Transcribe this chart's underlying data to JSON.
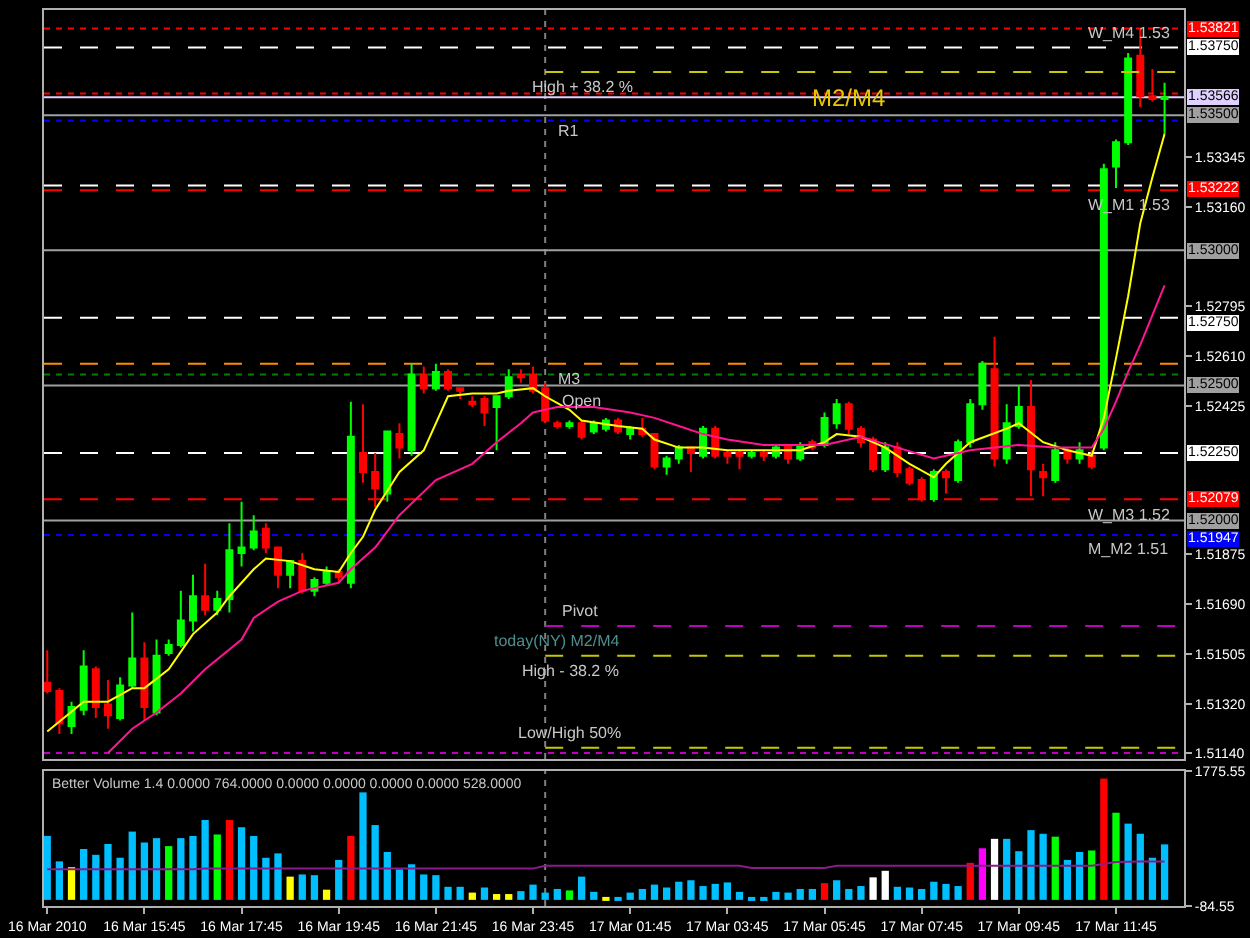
{
  "chart_data": [
    {
      "type": "candlestick",
      "x": [
        "2010-03-16T13:45",
        "2010-03-16T14:00",
        "2010-03-16T14:15",
        "2010-03-16T14:30",
        "2010-03-16T14:45",
        "2010-03-16T15:00",
        "2010-03-16T15:15",
        "2010-03-16T15:30",
        "2010-03-16T15:45",
        "2010-03-16T16:00",
        "2010-03-16T16:15",
        "2010-03-16T16:30",
        "2010-03-16T16:45",
        "2010-03-16T17:00",
        "2010-03-16T17:15",
        "2010-03-16T17:30",
        "2010-03-16T17:45",
        "2010-03-16T18:00",
        "2010-03-16T18:15",
        "2010-03-16T18:30",
        "2010-03-16T18:45",
        "2010-03-16T19:00",
        "2010-03-16T19:15",
        "2010-03-16T19:30",
        "2010-03-16T19:45",
        "2010-03-16T20:00",
        "2010-03-16T20:15",
        "2010-03-16T20:30",
        "2010-03-16T20:45",
        "2010-03-16T21:00",
        "2010-03-16T21:15",
        "2010-03-16T21:30",
        "2010-03-16T21:45",
        "2010-03-16T22:00",
        "2010-03-16T22:15",
        "2010-03-16T22:30",
        "2010-03-16T22:45",
        "2010-03-16T23:00",
        "2010-03-16T23:15",
        "2010-03-16T23:30",
        "2010-03-16T23:45",
        "2010-03-17T00:00",
        "2010-03-17T00:15",
        "2010-03-17T00:30",
        "2010-03-17T00:45",
        "2010-03-17T01:00",
        "2010-03-17T01:15",
        "2010-03-17T01:30",
        "2010-03-17T01:45",
        "2010-03-17T02:00",
        "2010-03-17T02:15",
        "2010-03-17T02:30",
        "2010-03-17T02:45",
        "2010-03-17T03:00",
        "2010-03-17T03:15",
        "2010-03-17T03:30",
        "2010-03-17T03:45",
        "2010-03-17T04:00",
        "2010-03-17T04:15",
        "2010-03-17T04:30",
        "2010-03-17T04:45",
        "2010-03-17T05:00",
        "2010-03-17T05:15",
        "2010-03-17T05:30",
        "2010-03-17T05:45",
        "2010-03-17T06:00",
        "2010-03-17T06:15",
        "2010-03-17T06:30",
        "2010-03-17T06:45",
        "2010-03-17T07:00",
        "2010-03-17T07:15",
        "2010-03-17T07:30",
        "2010-03-17T07:45",
        "2010-03-17T08:00",
        "2010-03-17T08:15",
        "2010-03-17T08:30",
        "2010-03-17T08:45",
        "2010-03-17T09:00",
        "2010-03-17T09:15",
        "2010-03-17T09:30",
        "2010-03-17T09:45",
        "2010-03-17T10:00",
        "2010-03-17T10:15",
        "2010-03-17T10:30",
        "2010-03-17T10:45",
        "2010-03-17T11:00",
        "2010-03-17T11:15",
        "2010-03-17T11:30",
        "2010-03-17T11:45",
        "2010-03-17T12:00",
        "2010-03-17T12:15",
        "2010-03-17T12:30",
        "2010-03-17T12:45"
      ],
      "ohlc": [
        [
          1.514,
          1.5152,
          1.5136,
          1.5137
        ],
        [
          1.5137,
          1.5138,
          1.5121,
          1.5125
        ],
        [
          1.5124,
          1.5133,
          1.5121,
          1.5131
        ],
        [
          1.513,
          1.5152,
          1.5128,
          1.5146
        ],
        [
          1.5145,
          1.5146,
          1.5127,
          1.5131
        ],
        [
          1.5132,
          1.5141,
          1.5123,
          1.5128
        ],
        [
          1.5127,
          1.5142,
          1.5126,
          1.5139
        ],
        [
          1.5139,
          1.5166,
          1.5138,
          1.5149
        ],
        [
          1.5149,
          1.5155,
          1.5126,
          1.5131
        ],
        [
          1.5129,
          1.5156,
          1.5128,
          1.515
        ],
        [
          1.5151,
          1.5156,
          1.515,
          1.5154
        ],
        [
          1.5154,
          1.5174,
          1.5153,
          1.5163
        ],
        [
          1.5163,
          1.518,
          1.5159,
          1.5172
        ],
        [
          1.5172,
          1.5184,
          1.5165,
          1.5167
        ],
        [
          1.5167,
          1.5174,
          1.5165,
          1.5171
        ],
        [
          1.5171,
          1.5199,
          1.5166,
          1.5189
        ],
        [
          1.5188,
          1.5207,
          1.5183,
          1.519
        ],
        [
          1.519,
          1.5202,
          1.5189,
          1.5196
        ],
        [
          1.5197,
          1.5199,
          1.5188,
          1.519
        ],
        [
          1.519,
          1.519,
          1.5175,
          1.518
        ],
        [
          1.518,
          1.5185,
          1.5175,
          1.5185
        ],
        [
          1.5185,
          1.5188,
          1.5173,
          1.5174
        ],
        [
          1.5174,
          1.5179,
          1.5172,
          1.5178
        ],
        [
          1.5177,
          1.5183,
          1.5176,
          1.5181
        ],
        [
          1.5181,
          1.5182,
          1.5177,
          1.5179
        ],
        [
          1.5177,
          1.5244,
          1.5175,
          1.5231
        ],
        [
          1.5225,
          1.5243,
          1.5214,
          1.5218
        ],
        [
          1.5218,
          1.5225,
          1.5205,
          1.5212
        ],
        [
          1.521,
          1.5233,
          1.5207,
          1.5233
        ],
        [
          1.5232,
          1.5236,
          1.5223,
          1.5227
        ],
        [
          1.5226,
          1.5258,
          1.5224,
          1.5254
        ],
        [
          1.5254,
          1.5257,
          1.5247,
          1.5249
        ],
        [
          1.5249,
          1.5258,
          1.5248,
          1.5255
        ],
        [
          1.5255,
          1.5256,
          1.5248,
          1.5249
        ],
        [
          1.5249,
          1.5249,
          1.5245,
          1.5248
        ],
        [
          1.5244,
          1.5246,
          1.5242,
          1.5243
        ],
        [
          1.5245,
          1.5246,
          1.5235,
          1.524
        ],
        [
          1.5242,
          1.5246,
          1.5226,
          1.5246
        ],
        [
          1.5246,
          1.5256,
          1.5245,
          1.5253
        ],
        [
          1.5254,
          1.5256,
          1.5251,
          1.5253
        ],
        [
          1.5254,
          1.5257,
          1.5247,
          1.5248
        ],
        [
          1.5249,
          1.5251,
          1.5236,
          1.5237
        ],
        [
          1.5236,
          1.5237,
          1.5234,
          1.5235
        ],
        [
          1.5235,
          1.5237,
          1.5234,
          1.5236
        ],
        [
          1.5236,
          1.5237,
          1.523,
          1.5231
        ],
        [
          1.5233,
          1.5237,
          1.5232,
          1.5236
        ],
        [
          1.5234,
          1.5238,
          1.5233,
          1.5237
        ],
        [
          1.5237,
          1.5238,
          1.5232,
          1.5233
        ],
        [
          1.5232,
          1.5235,
          1.523,
          1.5234
        ],
        [
          1.5234,
          1.5238,
          1.5231,
          1.5232
        ],
        [
          1.5232,
          1.5232,
          1.5219,
          1.522
        ],
        [
          1.522,
          1.5224,
          1.5217,
          1.5223
        ],
        [
          1.5223,
          1.5228,
          1.5221,
          1.5227
        ],
        [
          1.5227,
          1.5227,
          1.5218,
          1.5225
        ],
        [
          1.5224,
          1.5235,
          1.5223,
          1.5234
        ],
        [
          1.5234,
          1.5235,
          1.5223,
          1.5224
        ],
        [
          1.5225,
          1.5226,
          1.5221,
          1.5224
        ],
        [
          1.5225,
          1.5226,
          1.5219,
          1.5224
        ],
        [
          1.5224,
          1.5226,
          1.5223,
          1.5225
        ],
        [
          1.5225,
          1.5226,
          1.5222,
          1.5224
        ],
        [
          1.5224,
          1.5228,
          1.5223,
          1.5227
        ],
        [
          1.5228,
          1.5228,
          1.5221,
          1.5223
        ],
        [
          1.5223,
          1.5229,
          1.5222,
          1.5228
        ],
        [
          1.5229,
          1.523,
          1.5226,
          1.5227
        ],
        [
          1.5228,
          1.524,
          1.5227,
          1.5238
        ],
        [
          1.5236,
          1.5245,
          1.5234,
          1.5243
        ],
        [
          1.5243,
          1.5244,
          1.5232,
          1.5234
        ],
        [
          1.5234,
          1.5235,
          1.5227,
          1.5229
        ],
        [
          1.523,
          1.5231,
          1.5218,
          1.5219
        ],
        [
          1.5219,
          1.5229,
          1.5218,
          1.5227
        ],
        [
          1.5227,
          1.5229,
          1.5216,
          1.5218
        ],
        [
          1.5219,
          1.522,
          1.5213,
          1.5214
        ],
        [
          1.5215,
          1.5216,
          1.5207,
          1.5208
        ],
        [
          1.5208,
          1.5219,
          1.5207,
          1.5218
        ],
        [
          1.5218,
          1.5219,
          1.521,
          1.5216
        ],
        [
          1.5215,
          1.523,
          1.5214,
          1.5229
        ],
        [
          1.5229,
          1.5245,
          1.5227,
          1.5243
        ],
        [
          1.5243,
          1.5259,
          1.5241,
          1.5258
        ],
        [
          1.5256,
          1.5268,
          1.522,
          1.5223
        ],
        [
          1.5223,
          1.5243,
          1.5221,
          1.5236
        ],
        [
          1.5235,
          1.525,
          1.5234,
          1.5242
        ],
        [
          1.5242,
          1.5252,
          1.5209,
          1.5219
        ],
        [
          1.5218,
          1.5221,
          1.5209,
          1.5216
        ],
        [
          1.5215,
          1.5229,
          1.5214,
          1.5226
        ],
        [
          1.5226,
          1.5227,
          1.5221,
          1.5223
        ],
        [
          1.5223,
          1.5229,
          1.5221,
          1.5226
        ],
        [
          1.5224,
          1.5226,
          1.5219,
          1.522
        ],
        [
          1.5227,
          1.5332,
          1.5226,
          1.533
        ],
        [
          1.5331,
          1.5341,
          1.5323,
          1.534
        ],
        [
          1.534,
          1.5373,
          1.5339,
          1.5371
        ],
        [
          1.5372,
          1.53821,
          1.5353,
          1.5357
        ],
        [
          1.5357,
          1.5367,
          1.5355,
          1.5356
        ],
        [
          1.5356,
          1.5362,
          1.5343,
          1.53566
        ]
      ],
      "series": [
        {
          "type": "line",
          "color": "#c8c800",
          "line_style": "dashed",
          "x": [
            "2010-03-17T00:00",
            "2010-03-17T13:09"
          ],
          "values": [
            1.5366,
            1.5366
          ]
        },
        {
          "type": "line",
          "color": "#c000c0",
          "line_style": "dashed",
          "x": [
            "2010-03-17T00:00",
            "2010-03-17T13:09"
          ],
          "values": [
            1.5161,
            1.5161
          ]
        },
        {
          "type": "line",
          "color": "#c8c800",
          "line_style": "dashed",
          "x": [
            "2010-03-17T00:00",
            "2010-03-17T13:09"
          ],
          "values": [
            1.515,
            1.515
          ]
        },
        {
          "type": "line",
          "color": "#c8c800",
          "line_style": "dashed",
          "x": [
            "2010-03-17T00:00",
            "2010-03-17T13:09"
          ],
          "values": [
            1.5116,
            1.5116
          ]
        },
        {
          "type": "line",
          "color": "#ffff00",
          "x": [
            "2010-03-16T13:45",
            "2010-03-16T14:30",
            "2010-03-16T15:00",
            "2010-03-16T15:30",
            "2010-03-16T15:45",
            "2010-03-16T16:15",
            "2010-03-16T16:45",
            "2010-03-16T17:15",
            "2010-03-16T17:30",
            "2010-03-16T18:00",
            "2010-03-16T18:15",
            "2010-03-16T18:45",
            "2010-03-16T19:15",
            "2010-03-16T19:45",
            "2010-03-16T20:00",
            "2010-03-16T20:15",
            "2010-03-16T20:30",
            "2010-03-16T21:00",
            "2010-03-16T21:30",
            "2010-03-16T22:00",
            "2010-03-16T22:30",
            "2010-03-16T23:00",
            "2010-03-16T23:15",
            "2010-03-16T23:45",
            "2010-03-17T00:00",
            "2010-03-17T00:30",
            "2010-03-17T00:45",
            "2010-03-17T01:30",
            "2010-03-17T02:00",
            "2010-03-17T02:15",
            "2010-03-17T02:45",
            "2010-03-17T03:15",
            "2010-03-17T03:45",
            "2010-03-17T04:30",
            "2010-03-17T05:15",
            "2010-03-17T05:45",
            "2010-03-17T06:00",
            "2010-03-17T06:30",
            "2010-03-17T07:00",
            "2010-03-17T07:30",
            "2010-03-17T08:00",
            "2010-03-17T08:15",
            "2010-03-17T08:45",
            "2010-03-17T09:30",
            "2010-03-17T09:45",
            "2010-03-17T10:15",
            "2010-03-17T10:45",
            "2010-03-17T11:15",
            "2010-03-17T11:30",
            "2010-03-17T11:45",
            "2010-03-17T12:00",
            "2010-03-17T12:15",
            "2010-03-17T12:30",
            "2010-03-17T12:45"
          ],
          "values": [
            1.5122,
            1.5133,
            1.5133,
            1.5138,
            1.5138,
            1.5145,
            1.5158,
            1.5166,
            1.5172,
            1.5182,
            1.5186,
            1.5185,
            1.5182,
            1.5181,
            1.5188,
            1.5194,
            1.5204,
            1.5218,
            1.5226,
            1.5246,
            1.5247,
            1.5247,
            1.5248,
            1.5249,
            1.5246,
            1.5241,
            1.5237,
            1.5235,
            1.5234,
            1.523,
            1.5227,
            1.5227,
            1.5226,
            1.5226,
            1.5226,
            1.5229,
            1.5232,
            1.5231,
            1.5227,
            1.5221,
            1.5216,
            1.5221,
            1.5229,
            1.5234,
            1.5236,
            1.5229,
            1.5226,
            1.5224,
            1.5238,
            1.526,
            1.5283,
            1.531,
            1.5327,
            1.5343
          ]
        },
        {
          "type": "line",
          "color": "#ff1493",
          "x": [
            "2010-03-16T15:00",
            "2010-03-16T15:30",
            "2010-03-16T16:00",
            "2010-03-16T16:30",
            "2010-03-16T17:00",
            "2010-03-16T17:45",
            "2010-03-16T18:00",
            "2010-03-16T18:30",
            "2010-03-16T19:00",
            "2010-03-16T19:45",
            "2010-03-16T20:00",
            "2010-03-16T20:30",
            "2010-03-16T21:00",
            "2010-03-16T21:45",
            "2010-03-16T22:30",
            "2010-03-16T23:00",
            "2010-03-16T23:30",
            "2010-03-16T23:45",
            "2010-03-17T00:15",
            "2010-03-17T01:00",
            "2010-03-17T01:45",
            "2010-03-17T02:15",
            "2010-03-17T02:45",
            "2010-03-17T03:15",
            "2010-03-17T03:45",
            "2010-03-17T04:30",
            "2010-03-17T05:15",
            "2010-03-17T05:45",
            "2010-03-17T06:30",
            "2010-03-17T07:15",
            "2010-03-17T08:00",
            "2010-03-17T08:45",
            "2010-03-17T09:45",
            "2010-03-17T10:30",
            "2010-03-17T11:15",
            "2010-03-17T11:30",
            "2010-03-17T11:45",
            "2010-03-17T12:00",
            "2010-03-17T12:15",
            "2010-03-17T12:30",
            "2010-03-17T12:45"
          ],
          "values": [
            1.5114,
            1.5123,
            1.5129,
            1.5136,
            1.5145,
            1.5156,
            1.5164,
            1.517,
            1.5174,
            1.5177,
            1.5182,
            1.519,
            1.5202,
            1.5215,
            1.5221,
            1.5229,
            1.5236,
            1.524,
            1.5242,
            1.5242,
            1.524,
            1.5238,
            1.5235,
            1.5232,
            1.523,
            1.5228,
            1.5228,
            1.5228,
            1.5231,
            1.5227,
            1.5223,
            1.5226,
            1.5228,
            1.5227,
            1.5227,
            1.5234,
            1.5244,
            1.5255,
            1.5265,
            1.5276,
            1.5287
          ]
        }
      ],
      "xlim": [
        "2010-03-16T13:41",
        "2010-03-17T13:09"
      ],
      "ylim": [
        1.51118,
        1.53889
      ],
      "yticks": [
        {
          "value": 1.5114,
          "label": "1.51140"
        },
        {
          "value": 1.5132,
          "label": "1.51320"
        },
        1.51505,
        {
          "value": 1.5169,
          "label": "1.51690"
        },
        1.51875,
        1.52425,
        {
          "value": 1.5261,
          "label": "1.52610"
        },
        1.52795,
        {
          "value": 1.5316,
          "label": "1.53160"
        },
        1.53345
      ],
      "tick_labels": "y",
      "ref_lines": [
        {
          "axis": "x",
          "value": "2010-03-17T00:00",
          "color": "#808080",
          "line_style": "dotted"
        },
        {
          "axis": "y",
          "value": 1.53821,
          "color": "#ff0000",
          "line_style": "dotted",
          "label": "1.53821"
        },
        {
          "axis": "y",
          "value": 1.5375,
          "color": "#ffffff",
          "line_style": "dashed",
          "label": "1.53750"
        },
        {
          "axis": "y",
          "value": 1.5358,
          "color": "#ff0000",
          "line_style": "dotted"
        },
        {
          "axis": "y",
          "value": 1.53566,
          "color": "#e0d0ff",
          "line_style": "solid",
          "label": "1.53566"
        },
        {
          "axis": "y",
          "value": 1.535,
          "color": "#a0a0a0",
          "line_style": "solid",
          "label": "1.53500"
        },
        {
          "axis": "y",
          "value": 1.5348,
          "color": "#0000ff",
          "line_style": "dotted"
        },
        {
          "axis": "y",
          "value": 1.5324,
          "color": "#ffffff",
          "line_style": "dashed"
        },
        {
          "axis": "y",
          "value": 1.53222,
          "color": "#ff0000",
          "line_style": "dashed",
          "label": "1.53222"
        },
        {
          "axis": "y",
          "value": 1.53,
          "color": "#a0a0a0",
          "line_style": "solid",
          "label": "1.53000"
        },
        {
          "axis": "y",
          "value": 1.5275,
          "color": "#ffffff",
          "line_style": "dashed",
          "label": "1.52750"
        },
        {
          "axis": "y",
          "value": 1.5258,
          "color": "#ff8c00",
          "line_style": "dashed"
        },
        {
          "axis": "y",
          "value": 1.5254,
          "color": "#008000",
          "line_style": "dotted"
        },
        {
          "axis": "y",
          "value": 1.525,
          "color": "#a0a0a0",
          "line_style": "solid",
          "label": "1.52500"
        },
        {
          "axis": "y",
          "value": 1.5225,
          "color": "#ffffff",
          "line_style": "dashed",
          "label": "1.52250"
        },
        {
          "axis": "y",
          "value": 1.52079,
          "color": "#ff0000",
          "line_style": "dashed",
          "label": "1.52079"
        },
        {
          "axis": "y",
          "value": 1.52,
          "color": "#a0a0a0",
          "line_style": "solid",
          "label": "1.52000"
        },
        {
          "axis": "y",
          "value": 1.51947,
          "color": "#0000ff",
          "line_style": "dotted",
          "label": "1.51947"
        },
        {
          "axis": "y",
          "value": 1.5114,
          "color": "#c000c0",
          "line_style": "dotted"
        }
      ],
      "annotations": [
        {
          "text": "W_M4 1.53",
          "x": "2010-03-17T12:00",
          "y": 1.5375
        },
        {
          "text": "High + 38.2 %",
          "x": "2010-03-17T00:45",
          "y": 1.5366
        },
        {
          "text": "M2/M4",
          "x": "2010-03-17T06:15",
          "y": 1.53566
        },
        {
          "text": "R1",
          "x": "2010-03-17T00:30",
          "y": 1.535
        },
        {
          "text": "W_M1 1.53",
          "x": "2010-03-17T12:00",
          "y": 1.53222
        },
        {
          "text": "M3",
          "x": "2010-03-17T00:30",
          "y": 1.5258
        },
        {
          "text": "Open",
          "x": "2010-03-17T00:45",
          "y": 1.525
        },
        {
          "text": "W_M3 1.52",
          "x": "2010-03-17T12:00",
          "y": 1.52079
        },
        {
          "text": "M_M2 1.51",
          "x": "2010-03-17T12:00",
          "y": 1.51947
        },
        {
          "text": "Pivot",
          "x": "2010-03-17T00:45",
          "y": 1.5161
        },
        {
          "text": "today(NY) M2/M4",
          "x": "2010-03-17T00:15",
          "y": 1.5161
        },
        {
          "text": "High - 38.2 %",
          "x": "2010-03-17T00:30",
          "y": 1.515
        },
        {
          "text": "Low/High 50%",
          "x": "2010-03-17T00:30",
          "y": 1.5116
        }
      ]
    },
    {
      "type": "bar",
      "title": "Better Volume 1.4 0.0000 764.0000 0.0000 0.0000 0.0000 0.0000 528.0000",
      "x": [
        "2010-03-16T13:45",
        "2010-03-16T14:00",
        "2010-03-16T14:15",
        "2010-03-16T14:30",
        "2010-03-16T14:45",
        "2010-03-16T15:00",
        "2010-03-16T15:15",
        "2010-03-16T15:30",
        "2010-03-16T15:45",
        "2010-03-16T16:00",
        "2010-03-16T16:15",
        "2010-03-16T16:30",
        "2010-03-16T16:45",
        "2010-03-16T17:00",
        "2010-03-16T17:15",
        "2010-03-16T17:30",
        "2010-03-16T17:45",
        "2010-03-16T18:00",
        "2010-03-16T18:15",
        "2010-03-16T18:30",
        "2010-03-16T18:45",
        "2010-03-16T19:00",
        "2010-03-16T19:15",
        "2010-03-16T19:30",
        "2010-03-16T19:45",
        "2010-03-16T20:00",
        "2010-03-16T20:15",
        "2010-03-16T20:30",
        "2010-03-16T20:45",
        "2010-03-16T21:00",
        "2010-03-16T21:15",
        "2010-03-16T21:30",
        "2010-03-16T21:45",
        "2010-03-16T22:00",
        "2010-03-16T22:15",
        "2010-03-16T22:30",
        "2010-03-16T22:45",
        "2010-03-16T23:00",
        "2010-03-16T23:15",
        "2010-03-16T23:30",
        "2010-03-16T23:45",
        "2010-03-17T00:00",
        "2010-03-17T00:15",
        "2010-03-17T00:30",
        "2010-03-17T00:45",
        "2010-03-17T01:00",
        "2010-03-17T01:15",
        "2010-03-17T01:30",
        "2010-03-17T01:45",
        "2010-03-17T02:00",
        "2010-03-17T02:15",
        "2010-03-17T02:30",
        "2010-03-17T02:45",
        "2010-03-17T03:00",
        "2010-03-17T03:15",
        "2010-03-17T03:30",
        "2010-03-17T03:45",
        "2010-03-17T04:00",
        "2010-03-17T04:15",
        "2010-03-17T04:30",
        "2010-03-17T04:45",
        "2010-03-17T05:00",
        "2010-03-17T05:15",
        "2010-03-17T05:30",
        "2010-03-17T05:45",
        "2010-03-17T06:00",
        "2010-03-17T06:15",
        "2010-03-17T06:30",
        "2010-03-17T06:45",
        "2010-03-17T07:00",
        "2010-03-17T07:15",
        "2010-03-17T07:30",
        "2010-03-17T07:45",
        "2010-03-17T08:00",
        "2010-03-17T08:15",
        "2010-03-17T08:30",
        "2010-03-17T08:45",
        "2010-03-17T09:00",
        "2010-03-17T09:15",
        "2010-03-17T09:30",
        "2010-03-17T09:45",
        "2010-03-17T10:00",
        "2010-03-17T10:15",
        "2010-03-17T10:30",
        "2010-03-17T10:45",
        "2010-03-17T11:00",
        "2010-03-17T11:15",
        "2010-03-17T11:30",
        "2010-03-17T11:45",
        "2010-03-17T12:00",
        "2010-03-17T12:15",
        "2010-03-17T12:30",
        "2010-03-17T12:45"
      ],
      "series": [
        {
          "type": "bar",
          "values": [
            880,
            530,
            450,
            700,
            620,
            770,
            580,
            940,
            790,
            850,
            740,
            850,
            880,
            1100,
            900,
            1100,
            1000,
            880,
            580,
            640,
            320,
            350,
            340,
            140,
            550,
            880,
            1480,
            1030,
            660,
            420,
            490,
            350,
            340,
            180,
            180,
            100,
            170,
            80,
            80,
            120,
            210,
            100,
            150,
            130,
            320,
            110,
            40,
            40,
            100,
            150,
            210,
            170,
            250,
            270,
            190,
            220,
            240,
            110,
            40,
            40,
            110,
            100,
            150,
            150,
            230,
            270,
            150,
            190,
            310,
            400,
            180,
            170,
            150,
            250,
            220,
            190,
            510,
            710,
            840,
            840,
            670,
            960,
            910,
            870,
            550,
            660,
            680,
            1670,
            1200,
            1050,
            910,
            580,
            764
          ],
          "colors": [
            "#00bfff",
            "#00bfff",
            "#ffff00",
            "#00bfff",
            "#00bfff",
            "#00bfff",
            "#00bfff",
            "#00bfff",
            "#00bfff",
            "#00bfff",
            "#00ff00",
            "#00bfff",
            "#00bfff",
            "#00bfff",
            "#00ff00",
            "#ff0000",
            "#00bfff",
            "#00bfff",
            "#00bfff",
            "#00bfff",
            "#ffff00",
            "#00bfff",
            "#00bfff",
            "#ffff00",
            "#00bfff",
            "#ff0000",
            "#00bfff",
            "#00bfff",
            "#00bfff",
            "#00bfff",
            "#00bfff",
            "#00bfff",
            "#00bfff",
            "#00bfff",
            "#00bfff",
            "#ffff00",
            "#00bfff",
            "#ffff00",
            "#ffff00",
            "#00bfff",
            "#00bfff",
            "#00bfff",
            "#00bfff",
            "#00ff00",
            "#00bfff",
            "#00bfff",
            "#ffff00",
            "#00bfff",
            "#00bfff",
            "#00bfff",
            "#00bfff",
            "#00bfff",
            "#00bfff",
            "#00bfff",
            "#00bfff",
            "#00bfff",
            "#00bfff",
            "#00bfff",
            "#00bfff",
            "#00bfff",
            "#00bfff",
            "#00bfff",
            "#00bfff",
            "#00bfff",
            "#ff0000",
            "#00bfff",
            "#00bfff",
            "#00bfff",
            "#ffffff",
            "#ffffff",
            "#00bfff",
            "#00bfff",
            "#00bfff",
            "#00bfff",
            "#00bfff",
            "#00bfff",
            "#ff0000",
            "#ff00ff",
            "#ffffff",
            "#00bfff",
            "#00bfff",
            "#00bfff",
            "#00bfff",
            "#00ff00",
            "#00bfff",
            "#00bfff",
            "#00ff00",
            "#ff0000",
            "#00ff00",
            "#00bfff",
            "#00bfff",
            "#00bfff",
            "#00bfff"
          ]
        },
        {
          "type": "line",
          "color": "#8b1a8b",
          "x": [
            "2010-03-16T13:45",
            "2010-03-16T16:45",
            "2010-03-16T17:00",
            "2010-03-16T23:45",
            "2010-03-17T00:00",
            "2010-03-17T04:00",
            "2010-03-17T04:15",
            "2010-03-17T05:45",
            "2010-03-17T06:00",
            "2010-03-17T11:15",
            "2010-03-17T11:45",
            "2010-03-17T12:15",
            "2010-03-17T12:45"
          ],
          "values": [
            420,
            420,
            430,
            430,
            470,
            470,
            440,
            440,
            470,
            470,
            520,
            528,
            528
          ]
        }
      ],
      "xlim": [
        "2010-03-16T13:41",
        "2010-03-17T13:09"
      ],
      "xticks": [
        {
          "value": "2010-03-16T13:45",
          "label": "16 Mar 2010"
        },
        {
          "value": "2010-03-16T15:45",
          "label": "16 Mar 15:45"
        },
        {
          "value": "2010-03-16T17:45",
          "label": "16 Mar 17:45"
        },
        {
          "value": "2010-03-16T19:45",
          "label": "16 Mar 19:45"
        },
        {
          "value": "2010-03-16T21:45",
          "label": "16 Mar 21:45"
        },
        {
          "value": "2010-03-16T23:45",
          "label": "16 Mar 23:45"
        },
        {
          "value": "2010-03-17T01:45",
          "label": "17 Mar 01:45"
        },
        {
          "value": "2010-03-17T03:45",
          "label": "17 Mar 03:45"
        },
        {
          "value": "2010-03-17T05:45",
          "label": "17 Mar 05:45"
        },
        {
          "value": "2010-03-17T07:45",
          "label": "17 Mar 07:45"
        },
        {
          "value": "2010-03-17T09:45",
          "label": "17 Mar 09:45"
        },
        {
          "value": "2010-03-17T11:45",
          "label": "17 Mar 11:45"
        }
      ],
      "ylim": [
        -84.55,
        1775.55
      ],
      "yticks": [
        1775.55,
        -84.55
      ],
      "ref_lines": [
        {
          "axis": "x",
          "value": "2010-03-17T00:00",
          "color": "#808080",
          "line_style": "dotted"
        }
      ]
    }
  ]
}
